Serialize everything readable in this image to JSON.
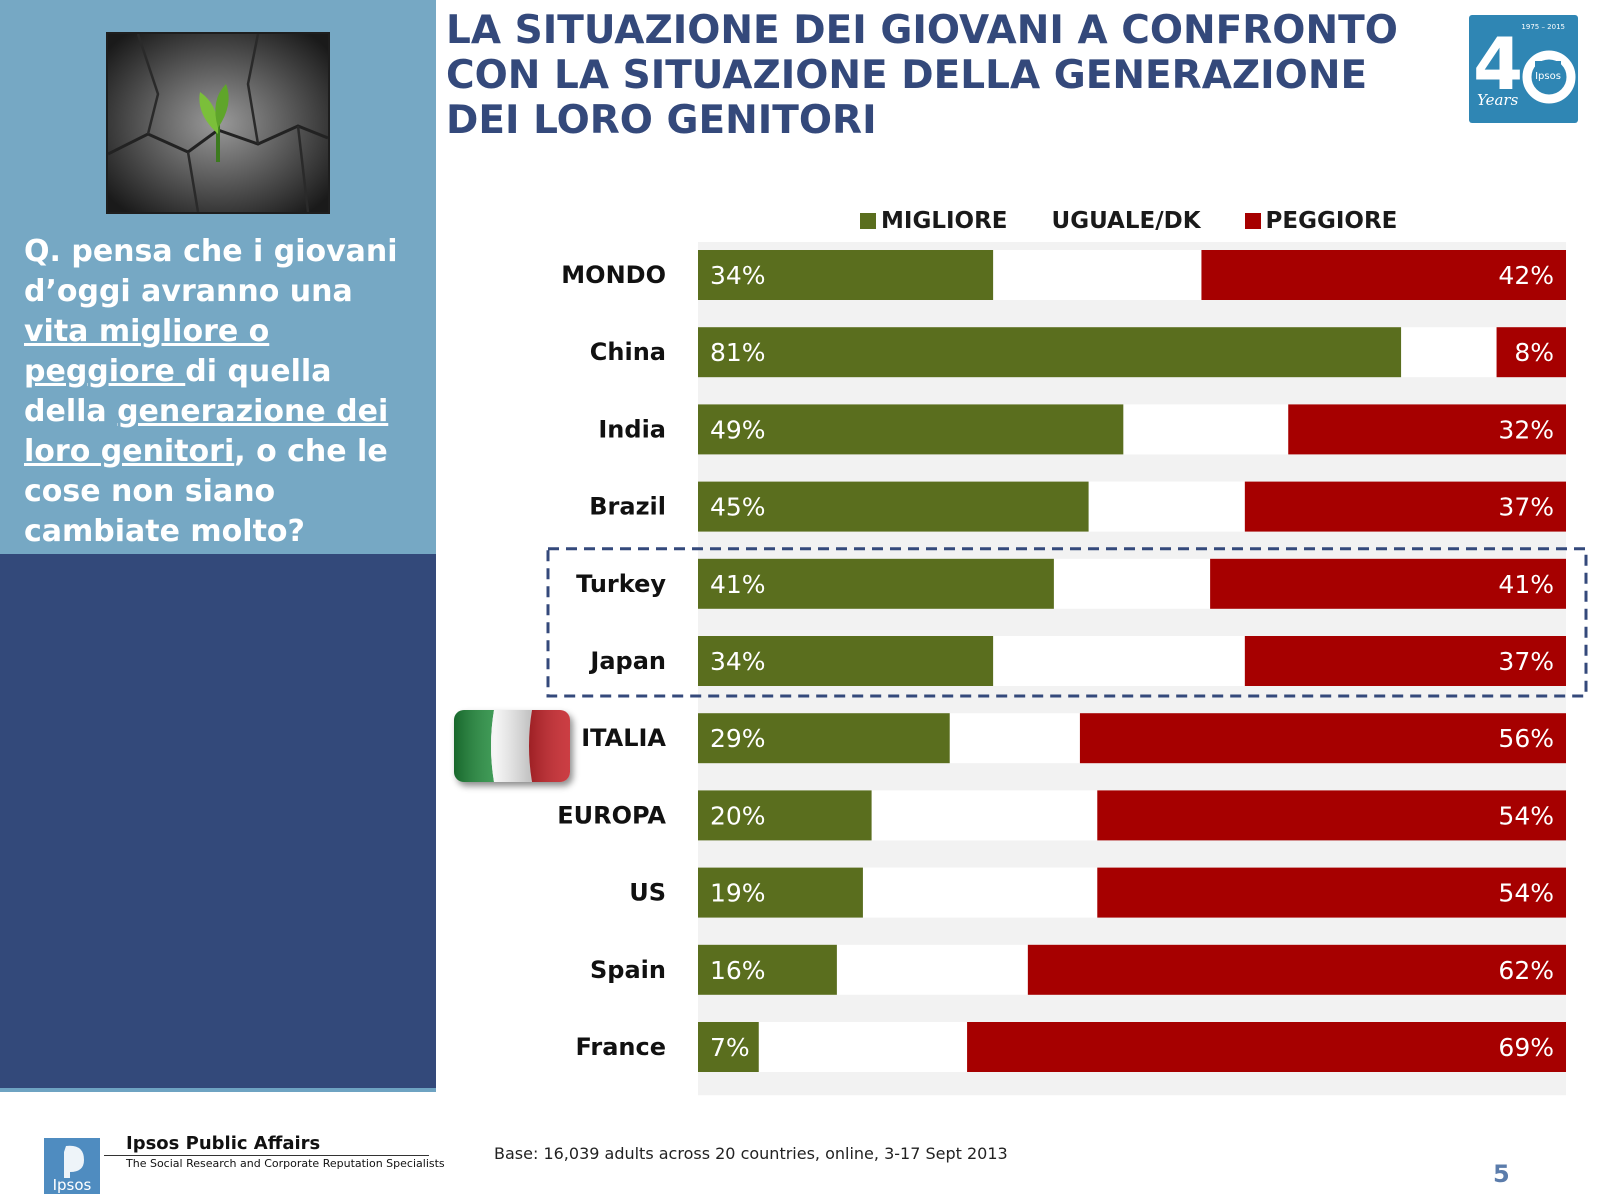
{
  "title": "LA SITUAZIONE DEI GIOVANI A CONFRONTO CON LA SITUAZIONE DELLA GENERAZIONE DEI LORO GENITORI",
  "question": {
    "p1": "Q. pensa che i giovani d’oggi avranno una ",
    "u1": "vita migliore o peggiore ",
    "p2": "di quella della ",
    "u2": "generazione dei loro genitori",
    "p3": ", o che le cose non siano cambiate molto?"
  },
  "logo": {
    "years": "1975 – 2015",
    "forty_4": "4",
    "brand": "Ipsos",
    "script": "Years"
  },
  "colors": {
    "migliore": "#5a6e1e",
    "peggiore": "#a60000",
    "track": "#f2f2f2",
    "title": "#34497b"
  },
  "chart_data": {
    "type": "bar",
    "stacked": true,
    "orientation": "horizontal",
    "categories": [
      "MONDO",
      "China",
      "India",
      "Brazil",
      "Turkey",
      "Japan",
      "ITALIA",
      "EUROPA",
      "US",
      "Spain",
      "France"
    ],
    "series": [
      {
        "name": "MIGLIORE",
        "values": [
          34,
          81,
          49,
          45,
          41,
          34,
          29,
          20,
          19,
          16,
          7
        ]
      },
      {
        "name": "UGUALE/DK",
        "values": [
          null,
          null,
          null,
          null,
          null,
          null,
          null,
          null,
          null,
          null,
          null
        ]
      },
      {
        "name": "PEGGIORE",
        "values": [
          42,
          8,
          32,
          37,
          41,
          37,
          56,
          54,
          54,
          62,
          69
        ]
      }
    ],
    "data_labels": {
      "migliore": [
        "34%",
        "81%",
        "49%",
        "45%",
        "41%",
        "34%",
        "29%",
        "20%",
        "19%",
        "16%",
        "7%"
      ],
      "peggiore": [
        "42%",
        "8%",
        "32%",
        "37%",
        "41%",
        "37%",
        "56%",
        "54%",
        "54%",
        "62%",
        "69%"
      ]
    },
    "xlim": [
      0,
      100
    ],
    "legend_position": "top",
    "highlight_categories": [
      "Turkey",
      "Japan"
    ]
  },
  "footer": {
    "brand": "Ipsos Public Affairs",
    "tagline": "The Social Research and Corporate Reputation Specialists",
    "logo_text": "Ipsos",
    "base": "Base: 16,039 adults across 20 countries, online, 3-17 Sept 2013",
    "page": "5"
  }
}
